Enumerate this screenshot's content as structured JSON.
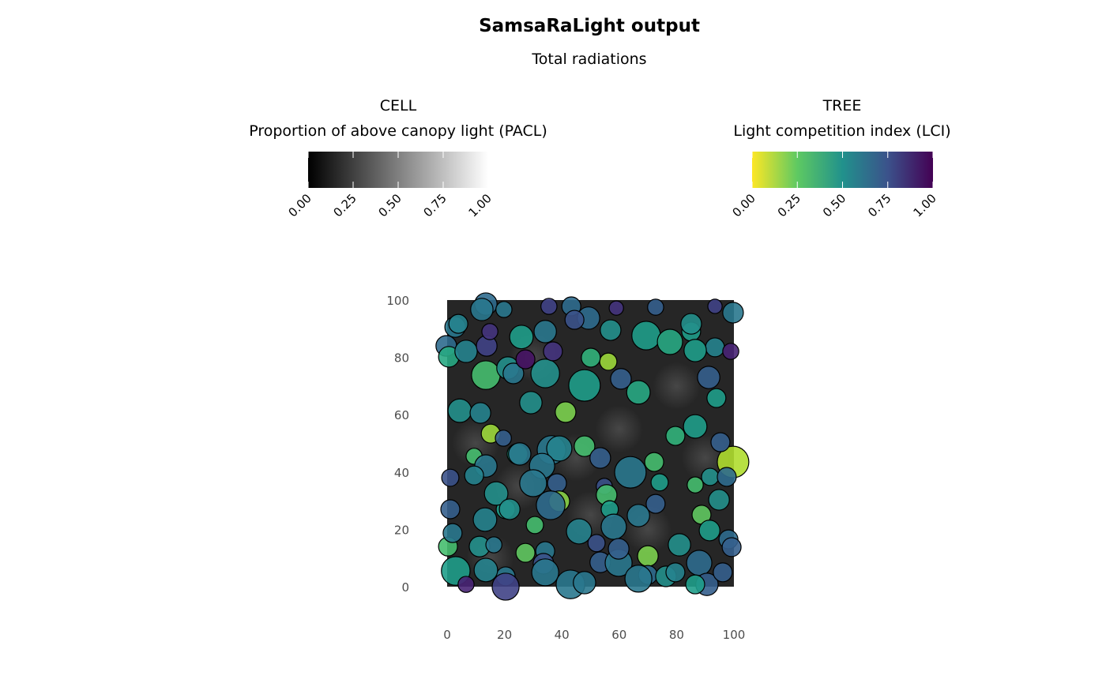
{
  "chart_data": {
    "type": "scatter",
    "title": "SamsaRaLight output",
    "subtitle": "Total radiations",
    "xlim": [
      0,
      100
    ],
    "ylim": [
      0,
      100
    ],
    "x_ticks": [
      "0",
      "20",
      "40",
      "60",
      "80",
      "100"
    ],
    "y_ticks": [
      "0",
      "20",
      "40",
      "60",
      "80",
      "100"
    ],
    "grid": false,
    "legend_placement": "top",
    "legends": [
      {
        "title_line1": "CELL",
        "title_line2": "Proportion of above canopy light (PACL)",
        "colormap": "greys",
        "range": [
          0,
          1
        ],
        "ticks": [
          "0.00",
          "0.25",
          "0.50",
          "0.75",
          "1.00"
        ],
        "colors": [
          "#000000",
          "#ffffff"
        ]
      },
      {
        "title_line1": "TREE",
        "title_line2": "Light competition index (LCI)",
        "colormap": "viridis-reversed",
        "range": [
          0,
          1
        ],
        "ticks": [
          "0.00",
          "0.25",
          "0.50",
          "0.75",
          "1.00"
        ],
        "colors": [
          "#fde725",
          "#5ec962",
          "#21918c",
          "#3b528b",
          "#440154"
        ]
      }
    ],
    "cell_background_pacl": 0.15,
    "tree_fields": [
      "x",
      "y",
      "crown_radius",
      "lci"
    ],
    "trees": [
      [
        13.5,
        98.6,
        3.9,
        0.65
      ],
      [
        12.1,
        96.7,
        3.9,
        0.6
      ],
      [
        19.8,
        96.7,
        2.8,
        0.6
      ],
      [
        2.8,
        90.6,
        3.6,
        0.6
      ],
      [
        3.9,
        91.7,
        3.3,
        0.55
      ],
      [
        -0.3,
        84.0,
        3.6,
        0.65
      ],
      [
        0.6,
        80.2,
        3.6,
        0.4
      ],
      [
        6.6,
        82.1,
        3.9,
        0.55
      ],
      [
        13.8,
        84.0,
        3.6,
        0.8
      ],
      [
        13.5,
        73.8,
        5.0,
        0.3
      ],
      [
        21.2,
        76.3,
        3.9,
        0.5
      ],
      [
        23.1,
        74.4,
        3.6,
        0.6
      ],
      [
        34.2,
        74.4,
        5.0,
        0.5
      ],
      [
        29.2,
        64.2,
        3.9,
        0.5
      ],
      [
        47.9,
        70.2,
        5.5,
        0.45
      ],
      [
        41.3,
        60.9,
        3.6,
        0.2
      ],
      [
        56.2,
        78.5,
        3.0,
        0.15
      ],
      [
        66.7,
        67.8,
        4.1,
        0.4
      ],
      [
        60.6,
        72.5,
        3.6,
        0.7
      ],
      [
        25.9,
        87.1,
        4.1,
        0.45
      ],
      [
        34.2,
        89.0,
        3.9,
        0.6
      ],
      [
        43.3,
        97.8,
        3.3,
        0.65
      ],
      [
        49.3,
        93.7,
        3.9,
        0.65
      ],
      [
        57.0,
        89.5,
        3.6,
        0.5
      ],
      [
        69.4,
        87.6,
        5.0,
        0.45
      ],
      [
        77.7,
        85.4,
        4.4,
        0.4
      ],
      [
        85.1,
        89.0,
        3.3,
        0.45
      ],
      [
        85.1,
        91.7,
        3.6,
        0.5
      ],
      [
        93.4,
        83.5,
        3.3,
        0.55
      ],
      [
        86.5,
        82.4,
        3.9,
        0.45
      ],
      [
        99.7,
        95.6,
        3.6,
        0.6
      ],
      [
        93.4,
        97.8,
        2.5,
        0.8
      ],
      [
        72.7,
        97.5,
        2.8,
        0.7
      ],
      [
        59.0,
        97.2,
        2.5,
        0.85
      ],
      [
        35.5,
        97.8,
        2.8,
        0.8
      ],
      [
        44.4,
        93.1,
        3.3,
        0.75
      ],
      [
        50.1,
        79.9,
        3.3,
        0.35
      ],
      [
        91.2,
        73.0,
        3.9,
        0.7
      ],
      [
        93.9,
        65.8,
        3.3,
        0.45
      ],
      [
        98.9,
        82.1,
        2.8,
        0.9
      ],
      [
        4.4,
        61.4,
        4.1,
        0.5
      ],
      [
        11.6,
        60.6,
        3.6,
        0.55
      ],
      [
        15.2,
        53.4,
        3.3,
        0.15
      ],
      [
        9.4,
        45.5,
        2.8,
        0.3
      ],
      [
        24.5,
        46.3,
        3.6,
        0.4
      ],
      [
        19.6,
        51.8,
        2.8,
        0.7
      ],
      [
        47.9,
        49.0,
        3.6,
        0.3
      ],
      [
        36.4,
        47.7,
        5.0,
        0.6
      ],
      [
        39.1,
        48.2,
        4.4,
        0.55
      ],
      [
        53.4,
        44.9,
        3.6,
        0.7
      ],
      [
        72.2,
        43.5,
        3.3,
        0.3
      ],
      [
        79.6,
        52.6,
        3.3,
        0.35
      ],
      [
        86.5,
        55.9,
        4.1,
        0.45
      ],
      [
        99.7,
        43.5,
        5.5,
        0.12
      ],
      [
        95.3,
        50.4,
        3.3,
        0.7
      ],
      [
        63.9,
        39.9,
        5.5,
        0.6
      ],
      [
        54.8,
        35.0,
        2.8,
        0.75
      ],
      [
        38.3,
        36.1,
        3.3,
        0.7
      ],
      [
        33.1,
        42.1,
        4.4,
        0.6
      ],
      [
        25.3,
        46.3,
        3.9,
        0.6
      ],
      [
        13.5,
        42.1,
        3.9,
        0.6
      ],
      [
        20.4,
        27.0,
        3.3,
        0.45
      ],
      [
        9.4,
        38.8,
        3.3,
        0.55
      ],
      [
        1.1,
        38.0,
        3.0,
        0.75
      ],
      [
        1.1,
        27.0,
        3.3,
        0.7
      ],
      [
        17.1,
        32.5,
        4.1,
        0.5
      ],
      [
        30.0,
        36.1,
        4.7,
        0.6
      ],
      [
        39.1,
        29.8,
        3.6,
        0.18
      ],
      [
        21.8,
        27.0,
        3.6,
        0.5
      ],
      [
        30.6,
        21.5,
        3.0,
        0.3
      ],
      [
        36.1,
        28.4,
        5.0,
        0.65
      ],
      [
        55.6,
        32.0,
        3.6,
        0.3
      ],
      [
        56.7,
        27.0,
        3.0,
        0.45
      ],
      [
        58.1,
        20.9,
        4.4,
        0.6
      ],
      [
        66.7,
        24.8,
        3.9,
        0.6
      ],
      [
        72.7,
        28.9,
        3.3,
        0.7
      ],
      [
        74.1,
        36.4,
        3.0,
        0.45
      ],
      [
        86.5,
        35.5,
        2.8,
        0.3
      ],
      [
        91.7,
        38.3,
        3.0,
        0.5
      ],
      [
        94.8,
        30.3,
        3.6,
        0.5
      ],
      [
        88.7,
        25.1,
        3.3,
        0.25
      ],
      [
        91.5,
        19.6,
        3.6,
        0.45
      ],
      [
        97.5,
        38.3,
        3.3,
        0.65
      ],
      [
        3.0,
        5.5,
        5.0,
        0.45
      ],
      [
        0.3,
        14.0,
        3.3,
        0.3
      ],
      [
        1.9,
        18.7,
        3.3,
        0.6
      ],
      [
        11.3,
        14.0,
        3.6,
        0.5
      ],
      [
        13.2,
        23.4,
        4.1,
        0.55
      ],
      [
        16.3,
        14.6,
        2.8,
        0.6
      ],
      [
        27.3,
        11.8,
        3.3,
        0.25
      ],
      [
        34.2,
        12.4,
        3.3,
        0.6
      ],
      [
        33.6,
        8.0,
        3.6,
        0.75
      ],
      [
        20.4,
        3.6,
        3.3,
        0.6
      ],
      [
        20.4,
        0.0,
        4.7,
        0.8
      ],
      [
        13.5,
        5.8,
        4.1,
        0.55
      ],
      [
        34.2,
        5.0,
        4.7,
        0.6
      ],
      [
        43.0,
        0.8,
        5.0,
        0.6
      ],
      [
        47.9,
        1.4,
        3.9,
        0.6
      ],
      [
        46.0,
        19.3,
        4.4,
        0.55
      ],
      [
        52.1,
        15.2,
        3.0,
        0.75
      ],
      [
        53.4,
        8.5,
        3.6,
        0.7
      ],
      [
        59.8,
        8.3,
        4.7,
        0.6
      ],
      [
        59.8,
        13.2,
        3.6,
        0.7
      ],
      [
        70.0,
        10.7,
        3.6,
        0.2
      ],
      [
        70.0,
        4.1,
        3.3,
        0.65
      ],
      [
        66.7,
        2.8,
        4.7,
        0.6
      ],
      [
        76.3,
        3.6,
        3.6,
        0.5
      ],
      [
        79.6,
        5.0,
        3.3,
        0.55
      ],
      [
        81.0,
        14.6,
        3.9,
        0.5
      ],
      [
        87.9,
        8.3,
        4.4,
        0.65
      ],
      [
        90.6,
        0.8,
        3.9,
        0.7
      ],
      [
        86.5,
        0.8,
        3.3,
        0.45
      ],
      [
        96.1,
        5.0,
        3.3,
        0.7
      ],
      [
        98.1,
        16.5,
        3.3,
        0.65
      ],
      [
        99.2,
        13.8,
        3.3,
        0.7
      ],
      [
        6.6,
        0.8,
        2.8,
        0.9
      ],
      [
        14.9,
        89.0,
        2.8,
        0.85
      ],
      [
        36.9,
        82.1,
        3.3,
        0.85
      ],
      [
        27.3,
        79.3,
        3.3,
        0.95
      ]
    ]
  }
}
